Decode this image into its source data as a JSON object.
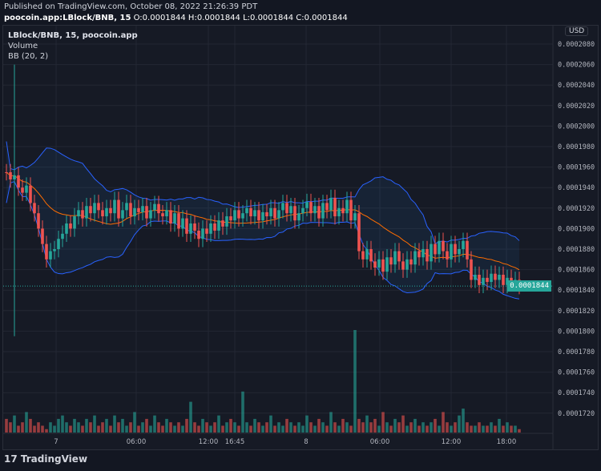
{
  "header": {
    "published": "Published on TradingView.com, October 08, 2022 21:26:39 PDT",
    "symbol": "poocoin.app:LBlock/BNB, 15",
    "ohlc": " O:0.0001844 H:0.0001844 L:0.0001844 C:0.0001844"
  },
  "legend": {
    "title": "LBlock/BNB, 15, poocoin.app",
    "volume": "Volume",
    "bb": "BB (20, 2)"
  },
  "currency": "USD",
  "current_price": "0.0001844",
  "brand": "TradingView",
  "colors": {
    "up": "#26a69a",
    "down": "#ef5350",
    "basis": "#ff6d00",
    "band": "#2962ff",
    "bg": "#161a25"
  },
  "chart_data": {
    "type": "candlestick",
    "price_ticks": [
      "0.0002080",
      "0.0002060",
      "0.0002040",
      "0.0002020",
      "0.0002000",
      "0.0001980",
      "0.0001960",
      "0.0001940",
      "0.0001920",
      "0.0001900",
      "0.0001880",
      "0.0001860",
      "0.0001840",
      "0.0001820",
      "0.0001800",
      "0.0001780",
      "0.0001760",
      "0.0001740",
      "0.0001720"
    ],
    "time_ticks": [
      "7",
      "06:00",
      "12:00",
      "16:45",
      "8",
      "06:00",
      "12:00",
      "18:00"
    ],
    "ylim": [
      0.000172,
      0.000208
    ],
    "first_close": 0.0001955,
    "spike": {
      "high": 0.000206,
      "low": 0.0001795
    },
    "closes": [
      1955,
      1948,
      1952,
      1940,
      1935,
      1942,
      1925,
      1915,
      1900,
      1885,
      1870,
      1878,
      1880,
      1890,
      1895,
      1905,
      1900,
      1912,
      1918,
      1910,
      1922,
      1915,
      1925,
      1918,
      1912,
      1920,
      1915,
      1928,
      1910,
      1918,
      1925,
      1912,
      1920,
      1916,
      1922,
      1910,
      1918,
      1924,
      1915,
      1912,
      1918,
      1905,
      1915,
      1900,
      1910,
      1895,
      1905,
      1898,
      1890,
      1900,
      1895,
      1905,
      1898,
      1908,
      1902,
      1912,
      1908,
      1918,
      1910,
      1915,
      1920,
      1912,
      1918,
      1908,
      1916,
      1912,
      1920,
      1910,
      1918,
      1925,
      1915,
      1922,
      1908,
      1915,
      1920,
      1926,
      1915,
      1922,
      1910,
      1925,
      1918,
      1930,
      1912,
      1920,
      1915,
      1928,
      1908,
      1915,
      1878,
      1870,
      1880,
      1868,
      1862,
      1870,
      1858,
      1872,
      1865,
      1878,
      1868,
      1860,
      1870,
      1865,
      1878,
      1872,
      1880,
      1868,
      1885,
      1875,
      1888,
      1878,
      1870,
      1885,
      1875,
      1880,
      1888,
      1870,
      1850,
      1855,
      1845,
      1852,
      1848,
      1856,
      1850,
      1855,
      1845,
      1852,
      1848,
      1850,
      1844
    ],
    "closes_unit": "1e-7",
    "volumes": [
      4,
      3,
      5,
      2,
      3,
      6,
      4,
      2,
      3,
      2,
      1,
      3,
      2,
      4,
      5,
      3,
      2,
      4,
      3,
      2,
      4,
      3,
      5,
      2,
      3,
      4,
      2,
      5,
      3,
      4,
      2,
      3,
      6,
      2,
      3,
      4,
      2,
      5,
      3,
      2,
      4,
      3,
      2,
      3,
      2,
      4,
      9,
      3,
      2,
      4,
      3,
      2,
      3,
      5,
      2,
      3,
      4,
      3,
      2,
      12,
      3,
      2,
      4,
      3,
      2,
      3,
      5,
      2,
      3,
      2,
      4,
      3,
      2,
      3,
      2,
      5,
      3,
      2,
      4,
      3,
      2,
      6,
      3,
      2,
      4,
      3,
      2,
      30,
      4,
      3,
      5,
      3,
      4,
      2,
      6,
      3,
      2,
      4,
      3,
      5,
      2,
      3,
      4,
      2,
      3,
      2,
      3,
      4,
      2,
      6,
      3,
      2,
      3,
      5,
      7,
      3,
      2,
      2,
      3,
      2,
      2,
      3,
      2,
      4,
      2,
      3,
      2,
      2,
      1
    ]
  }
}
